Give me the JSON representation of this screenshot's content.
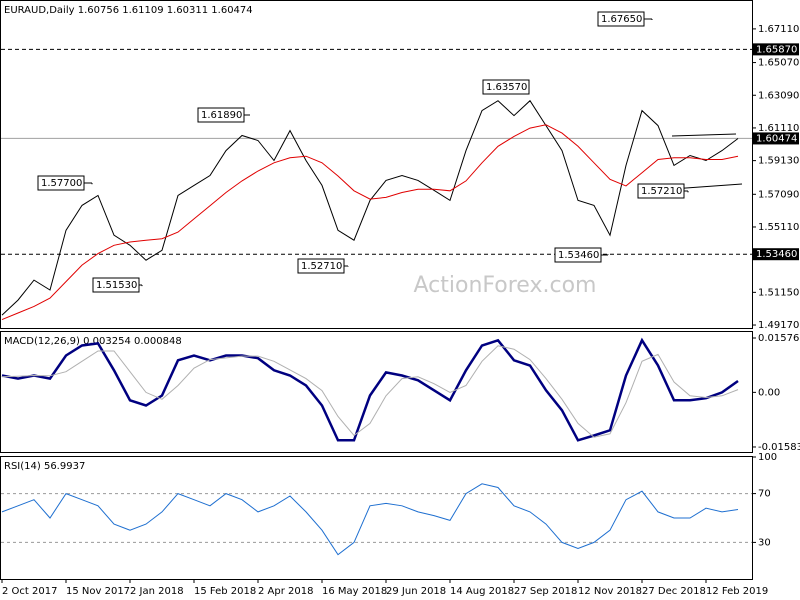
{
  "chart_data": [
    {
      "type": "line",
      "title": "EURAUD,Daily  1.60756 1.61109 1.60311 1.60474",
      "watermark": "ActionForex.com",
      "ylim": [
        1.4899,
        1.688
      ],
      "yticks": [
        {
          "value": 1.6711,
          "label": "1.67110"
        },
        {
          "value": 1.6507,
          "label": "1.65070"
        },
        {
          "value": 1.6309,
          "label": "1.63090"
        },
        {
          "value": 1.6111,
          "label": "1.61110"
        },
        {
          "value": 1.5913,
          "label": "1.59130"
        },
        {
          "value": 1.5709,
          "label": "1.57090"
        },
        {
          "value": 1.5511,
          "label": "1.55110"
        },
        {
          "value": 1.5115,
          "label": "1.51150"
        },
        {
          "value": 1.4917,
          "label": "1.49170"
        }
      ],
      "hlines": [
        {
          "value": 1.6587,
          "label": "1.65870",
          "style": "dashed"
        },
        {
          "value": 1.60474,
          "label": "1.60474",
          "style": "solid"
        },
        {
          "value": 1.5346,
          "label": "1.53460",
          "style": "dashed"
        }
      ],
      "annotations": [
        {
          "value": 1.6765,
          "label": "1.67650"
        },
        {
          "value": 1.6357,
          "label": "1.63570"
        },
        {
          "value": 1.6189,
          "label": "1.61890"
        },
        {
          "value": 1.577,
          "label": "1.57700"
        },
        {
          "value": 1.5153,
          "label": "1.51530"
        },
        {
          "value": 1.5271,
          "label": "1.52710"
        },
        {
          "value": 1.5346,
          "label": "1.53460"
        },
        {
          "value": 1.5721,
          "label": "1.57210"
        }
      ],
      "series": [
        {
          "color": "#000000",
          "values": [
            1.4977,
            1.5068,
            1.5189,
            1.5129,
            1.5491,
            1.5642,
            1.5702,
            1.5461,
            1.54,
            1.531,
            1.537,
            1.5702,
            1.5763,
            1.5823,
            1.5974,
            1.6065,
            1.6035,
            1.5914,
            1.6095,
            1.5914,
            1.5763,
            1.5491,
            1.5431,
            1.5672,
            1.5793,
            1.5823,
            1.5793,
            1.5733,
            1.5672,
            1.5974,
            1.6216,
            1.6276,
            1.6186,
            1.6276,
            1.6125,
            1.5974,
            1.5672,
            1.5642,
            1.5461,
            1.5884,
            1.6216,
            1.6125,
            1.5884,
            1.5944,
            1.5914,
            1.5974,
            1.6047
          ]
        },
        {
          "color": "#e00000",
          "values": [
            1.495,
            1.499,
            1.503,
            1.508,
            1.518,
            1.528,
            1.535,
            1.54,
            1.542,
            1.543,
            1.544,
            1.548,
            1.556,
            1.564,
            1.572,
            1.579,
            1.585,
            1.59,
            1.593,
            1.594,
            1.59,
            1.582,
            1.573,
            1.568,
            1.569,
            1.572,
            1.574,
            1.574,
            1.573,
            1.579,
            1.59,
            1.6,
            1.606,
            1.611,
            1.613,
            1.608,
            1.6,
            1.59,
            1.58,
            1.576,
            1.584,
            1.592,
            1.593,
            1.593,
            1.592,
            1.592,
            1.594
          ]
        }
      ]
    },
    {
      "type": "line",
      "title": "MACD(12,26,9) 0.003254 0.000848",
      "ylim": [
        -0.01729,
        0.0175
      ],
      "yticks": [
        0.015762,
        {
          "value": 0,
          "label": "0.00"
        },
        -0.015834
      ],
      "series": [
        {
          "color": "#000080",
          "width": 2.5,
          "values": [
            0.0049,
            0.004,
            0.0049,
            0.004,
            0.0107,
            0.0136,
            0.0142,
            0.0064,
            -0.0023,
            -0.0038,
            -0.0009,
            0.0093,
            0.0107,
            0.0093,
            0.0107,
            0.0107,
            0.0099,
            0.0064,
            0.0049,
            0.002,
            -0.0038,
            -0.0139,
            -0.0139,
            -0.0009,
            0.0058,
            0.0049,
            0.0035,
            0.0006,
            -0.0023,
            0.0064,
            0.0136,
            0.0151,
            0.0093,
            0.0078,
            0.0006,
            -0.0052,
            -0.0139,
            -0.0125,
            -0.011,
            0.0049,
            0.0151,
            0.0078,
            -0.0023,
            -0.0023,
            -0.0017,
            0,
            0.0033
          ]
        },
        {
          "color": "#b0b0b0",
          "width": 1,
          "values": [
            0.0045,
            0.0047,
            0.0049,
            0.0048,
            0.006,
            0.009,
            0.012,
            0.012,
            0.006,
            0,
            -0.002,
            0.002,
            0.007,
            0.0095,
            0.01,
            0.0105,
            0.0105,
            0.009,
            0.0065,
            0.004,
            0.0005,
            -0.007,
            -0.0125,
            -0.009,
            -0.001,
            0.004,
            0.0045,
            0.0025,
            0,
            0.002,
            0.009,
            0.0135,
            0.0125,
            0.0095,
            0.004,
            -0.002,
            -0.009,
            -0.013,
            -0.012,
            -0.003,
            0.009,
            0.011,
            0.003,
            -0.001,
            -0.0015,
            -0.001,
            0.0008
          ]
        }
      ]
    },
    {
      "type": "line",
      "title": "RSI(14) 56.9937",
      "ylim": [
        0,
        100
      ],
      "yticks": [
        100,
        70,
        30
      ],
      "grid": "dashed",
      "categories": [
        "2 Oct 2017",
        null,
        null,
        null,
        "15 Nov 2017",
        null,
        null,
        null,
        "2 Jan 2018",
        null,
        null,
        null,
        "15 Feb 2018",
        null,
        null,
        null,
        "2 Apr 2018",
        null,
        null,
        null,
        "16 May 2018",
        null,
        null,
        null,
        "29 Jun 2018",
        null,
        null,
        null,
        "14 Aug 2018",
        null,
        null,
        null,
        "27 Sep 2018",
        null,
        null,
        null,
        "12 Nov 2018",
        null,
        null,
        null,
        "27 Dec 2018",
        null,
        null,
        null,
        "12 Feb 2019",
        null,
        null
      ],
      "series": [
        {
          "color": "#1e6fd0",
          "width": 1,
          "values": [
            55,
            60,
            65,
            50,
            70,
            65,
            60,
            45,
            40,
            45,
            55,
            70,
            65,
            60,
            70,
            65,
            55,
            60,
            68,
            55,
            40,
            20,
            30,
            60,
            62,
            60,
            55,
            52,
            48,
            70,
            78,
            75,
            60,
            55,
            45,
            30,
            25,
            30,
            40,
            65,
            72,
            55,
            50,
            50,
            58,
            55,
            57
          ]
        }
      ]
    }
  ]
}
